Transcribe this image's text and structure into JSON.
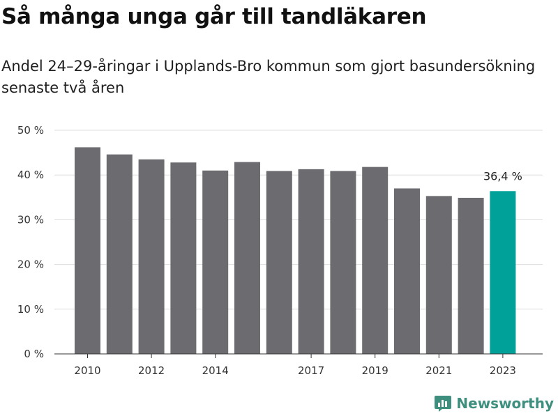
{
  "header": {
    "title": "Så många unga går till tandläkaren",
    "subtitle": "Andel 24–29-åringar i Upplands-Bro kommun som gjort basundersökning senaste två åren"
  },
  "brand": {
    "name": "Newsworthy",
    "icon": "newsworthy-logo-icon",
    "color": "#3f8f7f"
  },
  "chart_data": {
    "type": "bar",
    "title": "Så många unga går till tandläkaren",
    "subtitle": "Andel 24–29-åringar i Upplands-Bro kommun som gjort basundersökning senaste två åren",
    "categories": [
      "2010",
      "2011",
      "2012",
      "2013",
      "2014",
      "2015",
      "2016",
      "2017",
      "2018",
      "2019",
      "2020",
      "2021",
      "2022",
      "2023"
    ],
    "x_tick_labels": [
      "2010",
      "",
      "2012",
      "",
      "2014",
      "",
      "",
      "2017",
      "",
      "2019",
      "",
      "2021",
      "",
      "2023"
    ],
    "series": [
      {
        "values": [
          46.2,
          44.6,
          43.5,
          42.8,
          41.0,
          42.9,
          40.9,
          41.3,
          40.9,
          41.8,
          37.0,
          35.3,
          34.9,
          36.4
        ]
      }
    ],
    "ylim": [
      0,
      50
    ],
    "y_ticks": [
      0,
      10,
      20,
      30,
      40,
      50
    ],
    "y_tick_labels": [
      "0 %",
      "10 %",
      "20 %",
      "30 %",
      "40 %",
      "50 %"
    ],
    "grid": true,
    "colors": {
      "bar": "#6c6b70",
      "highlight": "#00a199",
      "grid": "#dddddd"
    },
    "highlight_index": 13,
    "annotations": [
      {
        "index": 13,
        "text": "36,4 %"
      }
    ]
  }
}
